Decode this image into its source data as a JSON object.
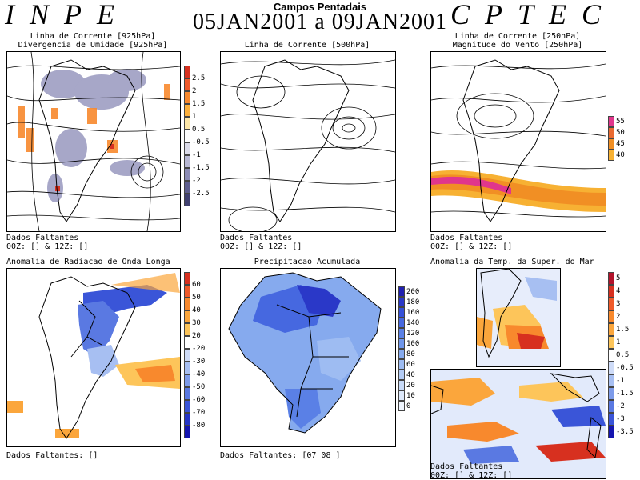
{
  "header": {
    "left_logo": "INPE",
    "right_logo": "CPTEC",
    "title": "Campos Pentadais",
    "date_range": "05JAN2001 a 09JAN2001"
  },
  "panels": {
    "p1": {
      "title_line1": "Linha de Corrente [925hPa]",
      "title_line2": "Divergencia de Umidade [925hPa]"
    },
    "p2": {
      "title_line1": "Linha de Corrente [500hPa]"
    },
    "p3": {
      "title_line1": "Linha de Corrente [250hPa]",
      "title_line2": "Magnitude do Vento [250hPa]"
    },
    "p4": {
      "title_line1": "Anomalia de Radiacao de Onda Longa"
    },
    "p5": {
      "title_line1": "Precipitacao Acumulada"
    },
    "p6": {
      "title_line1": "Anomalia da Temp. da Super. do Mar"
    }
  },
  "missing": {
    "p1": {
      "line1": "Dados Faltantes",
      "line2": "00Z: [] & 12Z: []"
    },
    "p2": {
      "line1": "Dados Faltantes",
      "line2": "00Z: [] & 12Z: []"
    },
    "p3": {
      "line1": "Dados Faltantes",
      "line2": "00Z: [] & 12Z: []"
    },
    "p4": {
      "line1": "Dados Faltantes: []"
    },
    "p5": {
      "line1": "Dados Faltantes: [07 08 ]"
    },
    "p6": {
      "line1": "Dados Faltantes",
      "line2": "00Z: [] & 12Z: []"
    }
  },
  "colorbars": {
    "divergence": {
      "labels": [
        "2.5",
        "2",
        "1.5",
        "1",
        "0.5",
        "-0.5",
        "-1",
        "-1.5",
        "-2",
        "-2.5"
      ],
      "colors": [
        "#d7301f",
        "#f05a2a",
        "#f8892d",
        "#fcb03b",
        "#fde7a8",
        "#ffffff",
        "#dcdcea",
        "#b8b8d4",
        "#8c8cb6",
        "#5e5e8e",
        "#404070"
      ]
    },
    "wind": {
      "labels": [
        "55",
        "50",
        "45",
        "40"
      ],
      "colors": [
        "#e0368c",
        "#ea6a30",
        "#f18f24",
        "#f7b133"
      ]
    },
    "olr": {
      "labels": [
        "60",
        "50",
        "40",
        "30",
        "20",
        "-20",
        "-30",
        "-40",
        "-50",
        "-60",
        "-70",
        "-80"
      ],
      "colors": [
        "#d7301f",
        "#ef5a2a",
        "#f8892d",
        "#fba63c",
        "#fdc55a",
        "#ffffff",
        "#cfdcf8",
        "#a7bff2",
        "#7d9bea",
        "#5a79e2",
        "#3a55d8",
        "#2535c6",
        "#1515b0"
      ]
    },
    "precip": {
      "labels": [
        "200",
        "180",
        "160",
        "140",
        "120",
        "100",
        "80",
        "60",
        "40",
        "20",
        "10",
        "0"
      ],
      "colors": [
        "#2020b0",
        "#2a38c8",
        "#3550d8",
        "#4668e0",
        "#5a80e6",
        "#6f96ea",
        "#86aaee",
        "#9ebcf2",
        "#b4ccf5",
        "#c9dbf8",
        "#dde8fa",
        "#eef4fd"
      ]
    },
    "sst": {
      "labels": [
        "5",
        "4",
        "3",
        "2",
        "1.5",
        "1",
        "0.5",
        "-0.5",
        "-1",
        "-1.5",
        "-2",
        "-3",
        "-3.5"
      ],
      "colors": [
        "#b3132b",
        "#d7301f",
        "#ef5a2a",
        "#f8892d",
        "#fba63c",
        "#fdc55a",
        "#ffffff",
        "#cfdcf8",
        "#a7bff2",
        "#7d9bea",
        "#5a79e2",
        "#3a55d8",
        "#1515b0"
      ]
    }
  }
}
